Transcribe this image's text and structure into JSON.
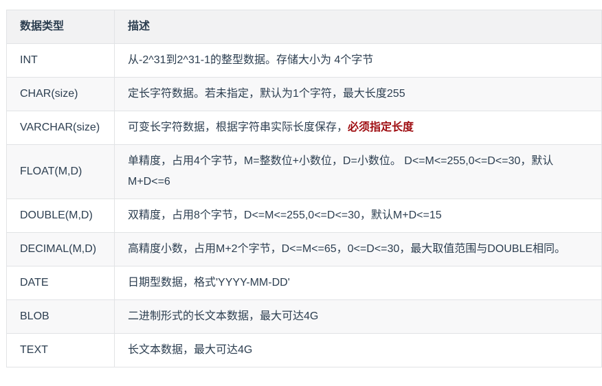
{
  "theme": {
    "text_color": "#2c3e50",
    "border_color": "#e1e3e5",
    "header_bg": "#f2f2f3",
    "zebra_bg": "#f8f8f9",
    "emphasis_red": "#9e0b0f"
  },
  "table": {
    "headers": [
      "数据类型",
      "描述"
    ],
    "rows": [
      {
        "type": "INT",
        "desc": "从-2^31到2^31-1的整型数据。存储大小为 4个字节",
        "desc_emphasis": ""
      },
      {
        "type": "CHAR(size)",
        "desc": "定长字符数据。若未指定，默认为1个字符，最大长度255",
        "desc_emphasis": ""
      },
      {
        "type": "VARCHAR(size)",
        "desc": "可变长字符数据，根据字符串实际长度保存，",
        "desc_emphasis": "必须指定长度"
      },
      {
        "type": "FLOAT(M,D)",
        "desc": "单精度，占用4个字节，M=整数位+小数位，D=小数位。 D<=M<=255,0<=D<=30，默认M+D<=6",
        "desc_emphasis": ""
      },
      {
        "type": "DOUBLE(M,D)",
        "desc": "双精度，占用8个字节，D<=M<=255,0<=D<=30，默认M+D<=15",
        "desc_emphasis": ""
      },
      {
        "type": "DECIMAL(M,D)",
        "desc": "高精度小数，占用M+2个字节，D<=M<=65，0<=D<=30，最大取值范围与DOUBLE相同。",
        "desc_emphasis": ""
      },
      {
        "type": "DATE",
        "desc": "日期型数据，格式'YYYY-MM-DD'",
        "desc_emphasis": ""
      },
      {
        "type": "BLOB",
        "desc": "二进制形式的长文本数据，最大可达4G",
        "desc_emphasis": ""
      },
      {
        "type": "TEXT",
        "desc": "长文本数据，最大可达4G",
        "desc_emphasis": ""
      }
    ]
  }
}
